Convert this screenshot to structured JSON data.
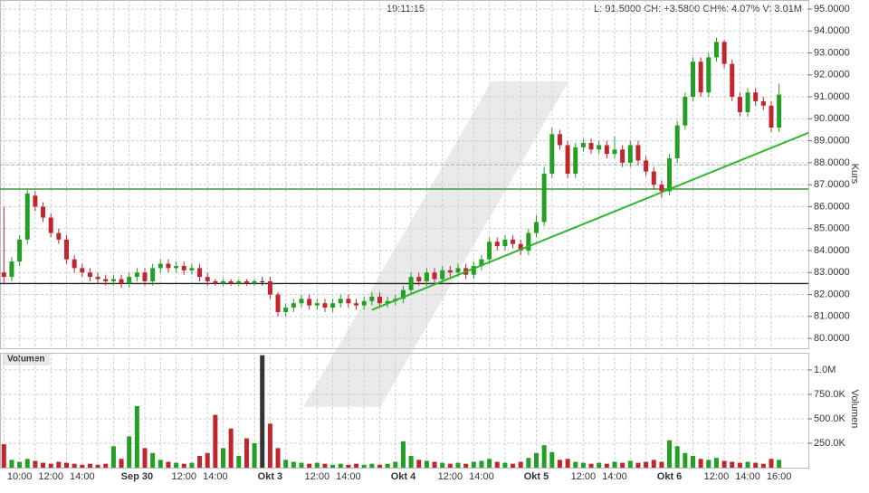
{
  "chart_data": {
    "type": "candlestick",
    "header_time": "19:11:15",
    "header_stats": "L: 91.5000 CH: +3.5800 CH%: 4.07% V: 3.01M",
    "ylabel": "Kurs",
    "volume_title": "Volumen",
    "volume_ylabel": "Volumen",
    "up_color": "#23a023",
    "down_color": "#c0262d",
    "flat_color": "#333333",
    "grid": true,
    "categories": [
      null,
      null,
      "10:00",
      null,
      null,
      null,
      "12:00",
      null,
      null,
      null,
      "14:00",
      null,
      null,
      null,
      null,
      null,
      null,
      "Sep 30",
      null,
      null,
      null,
      null,
      null,
      "12:00",
      null,
      null,
      null,
      "14:00",
      null,
      null,
      null,
      null,
      null,
      null,
      "Okt 3",
      null,
      null,
      null,
      null,
      null,
      "12:00",
      null,
      null,
      null,
      "14:00",
      null,
      null,
      null,
      null,
      null,
      null,
      "Okt 4",
      null,
      null,
      null,
      null,
      null,
      "12:00",
      null,
      null,
      null,
      "14:00",
      null,
      null,
      null,
      null,
      null,
      null,
      "Okt 5",
      null,
      null,
      null,
      null,
      null,
      "12:00",
      null,
      null,
      null,
      "14:00",
      null,
      null,
      null,
      null,
      null,
      null,
      "Okt 6",
      null,
      null,
      null,
      null,
      null,
      "12:00",
      null,
      null,
      null,
      "14:00",
      null,
      null,
      null,
      "16:00"
    ],
    "bold_categories": [
      "Sep 30",
      "Okt 3",
      "Okt 4",
      "Okt 5",
      "Okt 6"
    ],
    "open": [
      83.0,
      82.8,
      83.5,
      84.5,
      86.5,
      86.0,
      85.5,
      84.8,
      84.5,
      83.6,
      83.2,
      83.0,
      82.8,
      82.7,
      82.6,
      82.7,
      82.5,
      82.8,
      83.0,
      82.6,
      83.2,
      83.4,
      83.2,
      83.3,
      83.1,
      83.2,
      82.8,
      82.6,
      82.5,
      82.6,
      82.5,
      82.6,
      82.5,
      82.6,
      82.6,
      82.0,
      81.2,
      81.4,
      81.6,
      81.8,
      81.5,
      81.6,
      81.4,
      81.6,
      81.8,
      81.6,
      81.5,
      81.7,
      81.9,
      81.6,
      81.7,
      81.8,
      82.2,
      82.8,
      82.6,
      83.0,
      82.7,
      83.1,
      83.0,
      83.2,
      82.9,
      83.3,
      83.6,
      84.4,
      84.2,
      84.5,
      84.3,
      84.0,
      84.8,
      85.3,
      87.5,
      89.3,
      88.8,
      87.5,
      88.7,
      88.9,
      88.6,
      88.8,
      88.4,
      88.6,
      88.0,
      88.8,
      88.1,
      87.6,
      87.0,
      86.7,
      88.2,
      89.7,
      91.0,
      92.6,
      91.2,
      92.8,
      93.5,
      92.5,
      91.0,
      90.3,
      91.2,
      90.8,
      90.6,
      89.6
    ],
    "high": [
      86.0,
      83.7,
      84.7,
      86.8,
      86.7,
      86.2,
      85.7,
      85.0,
      84.7,
      83.8,
      83.4,
      83.2,
      83.0,
      82.9,
      82.9,
      82.9,
      83.0,
      83.2,
      83.2,
      83.4,
      83.6,
      83.6,
      83.5,
      83.5,
      83.4,
      83.4,
      83.0,
      82.7,
      82.7,
      82.7,
      82.7,
      82.7,
      82.7,
      82.8,
      82.8,
      82.1,
      81.6,
      81.8,
      82.0,
      82.0,
      81.8,
      81.8,
      81.8,
      82.0,
      82.0,
      81.8,
      81.9,
      82.1,
      82.1,
      81.9,
      82.0,
      82.4,
      83.0,
      83.0,
      83.2,
      83.2,
      83.3,
      83.3,
      83.4,
      83.4,
      83.5,
      83.8,
      84.6,
      84.6,
      84.7,
      84.7,
      84.5,
      85.0,
      85.6,
      87.8,
      89.6,
      89.5,
      89.0,
      88.9,
      89.1,
      89.1,
      89.0,
      89.0,
      89.2,
      88.8,
      89.0,
      89.0,
      88.3,
      87.8,
      87.2,
      88.4,
      89.9,
      91.2,
      92.8,
      92.8,
      93.0,
      93.7,
      93.6,
      92.7,
      91.2,
      91.4,
      91.4,
      91.0,
      90.8,
      91.6
    ],
    "low": [
      82.5,
      82.6,
      83.3,
      84.3,
      85.8,
      85.3,
      84.6,
      84.3,
      83.4,
      83.0,
      82.8,
      82.6,
      82.5,
      82.4,
      82.4,
      82.3,
      82.3,
      82.6,
      82.4,
      82.4,
      83.0,
      83.0,
      83.0,
      82.9,
      82.9,
      82.6,
      82.4,
      82.4,
      82.4,
      82.4,
      82.4,
      82.4,
      82.4,
      82.4,
      81.8,
      81.0,
      81.0,
      81.2,
      81.4,
      81.3,
      81.3,
      81.2,
      81.2,
      81.4,
      81.4,
      81.3,
      81.3,
      81.5,
      81.4,
      81.4,
      81.5,
      81.6,
      82.0,
      82.4,
      82.4,
      82.5,
      82.5,
      82.8,
      82.8,
      82.7,
      82.7,
      83.1,
      83.4,
      84.0,
      84.0,
      84.1,
      83.8,
      83.8,
      84.6,
      85.1,
      87.3,
      88.6,
      87.3,
      87.3,
      88.5,
      88.4,
      88.4,
      88.2,
      88.2,
      87.8,
      87.8,
      87.9,
      87.4,
      86.8,
      86.4,
      86.5,
      88.0,
      89.5,
      90.8,
      91.0,
      91.0,
      92.6,
      92.3,
      90.8,
      90.1,
      90.1,
      90.6,
      90.4,
      89.4,
      89.4
    ],
    "close": [
      82.8,
      83.5,
      84.5,
      86.6,
      86.0,
      85.5,
      84.8,
      84.5,
      83.6,
      83.2,
      83.0,
      82.8,
      82.7,
      82.6,
      82.7,
      82.5,
      82.8,
      83.0,
      82.6,
      83.2,
      83.4,
      83.2,
      83.3,
      83.1,
      83.2,
      82.8,
      82.6,
      82.5,
      82.6,
      82.5,
      82.6,
      82.5,
      82.6,
      82.6,
      82.0,
      81.2,
      81.4,
      81.6,
      81.8,
      81.5,
      81.6,
      81.4,
      81.6,
      81.8,
      81.6,
      81.5,
      81.7,
      81.9,
      81.6,
      81.7,
      81.8,
      82.2,
      82.8,
      82.6,
      83.0,
      82.7,
      83.1,
      83.0,
      83.2,
      82.9,
      83.3,
      83.6,
      84.4,
      84.2,
      84.5,
      84.3,
      84.0,
      84.8,
      85.3,
      87.5,
      89.3,
      88.8,
      87.5,
      88.7,
      88.9,
      88.6,
      88.8,
      88.4,
      88.6,
      88.0,
      88.8,
      88.1,
      87.6,
      87.0,
      86.7,
      88.2,
      89.7,
      91.0,
      92.6,
      91.2,
      92.8,
      93.5,
      92.5,
      91.0,
      90.3,
      91.2,
      90.8,
      90.6,
      89.6,
      91.1
    ],
    "volume": [
      240000,
      80000,
      60000,
      90000,
      70000,
      50000,
      40000,
      60000,
      50000,
      40000,
      30000,
      40000,
      30000,
      40000,
      220000,
      90000,
      320000,
      630000,
      200000,
      150000,
      80000,
      60000,
      50000,
      40000,
      50000,
      120000,
      150000,
      540000,
      200000,
      400000,
      120000,
      300000,
      250000,
      1150000,
      450000,
      200000,
      80000,
      60000,
      50000,
      40000,
      50000,
      40000,
      30000,
      40000,
      30000,
      40000,
      30000,
      40000,
      30000,
      40000,
      60000,
      270000,
      120000,
      80000,
      70000,
      60000,
      50000,
      40000,
      50000,
      40000,
      60000,
      70000,
      90000,
      60000,
      50000,
      40000,
      60000,
      100000,
      150000,
      230000,
      160000,
      80000,
      90000,
      60000,
      50000,
      40000,
      50000,
      40000,
      60000,
      50000,
      70000,
      50000,
      60000,
      80000,
      60000,
      280000,
      220000,
      150000,
      120000,
      90000,
      80000,
      100000,
      70000,
      60000,
      50000,
      60000,
      50000,
      40000,
      90000,
      80000
    ],
    "ylim": [
      79.55,
      95.41
    ],
    "yticks": [
      {
        "value": 80,
        "label": "80.0000"
      },
      {
        "value": 81,
        "label": "81.0000"
      },
      {
        "value": 82,
        "label": "82.0000"
      },
      {
        "value": 83,
        "label": "83.0000"
      },
      {
        "value": 84,
        "label": "84.0000"
      },
      {
        "value": 85,
        "label": "85.0000"
      },
      {
        "value": 86,
        "label": "86.0000"
      },
      {
        "value": 87,
        "label": "87.0000"
      },
      {
        "value": 88,
        "label": "88.0000"
      },
      {
        "value": 89,
        "label": "89.0000"
      },
      {
        "value": 90,
        "label": "90.0000"
      },
      {
        "value": 91,
        "label": "91.0000"
      },
      {
        "value": 92,
        "label": "92.0000"
      },
      {
        "value": 93,
        "label": "93.0000"
      },
      {
        "value": 94,
        "label": "94.0000"
      },
      {
        "value": 95,
        "label": "95.0000"
      }
    ],
    "volume_ylim": [
      0,
      1175000
    ],
    "volume_yticks": [
      {
        "value": 250000,
        "label": "250.0K"
      },
      {
        "value": 500000,
        "label": "500.0K"
      },
      {
        "value": 750000,
        "label": "750.0K"
      },
      {
        "value": 1000000,
        "label": "1.0M"
      }
    ],
    "levels": [
      {
        "value": 82.5,
        "color": "#222222"
      },
      {
        "value": 86.8,
        "color": "#3a9a3a"
      },
      {
        "value": 87.9,
        "color": "#aaaaaa",
        "dashed": true
      }
    ],
    "trendline": {
      "x": [
        47,
        103
      ],
      "y": [
        81.3,
        89.4
      ],
      "color": "#2db52d"
    }
  }
}
